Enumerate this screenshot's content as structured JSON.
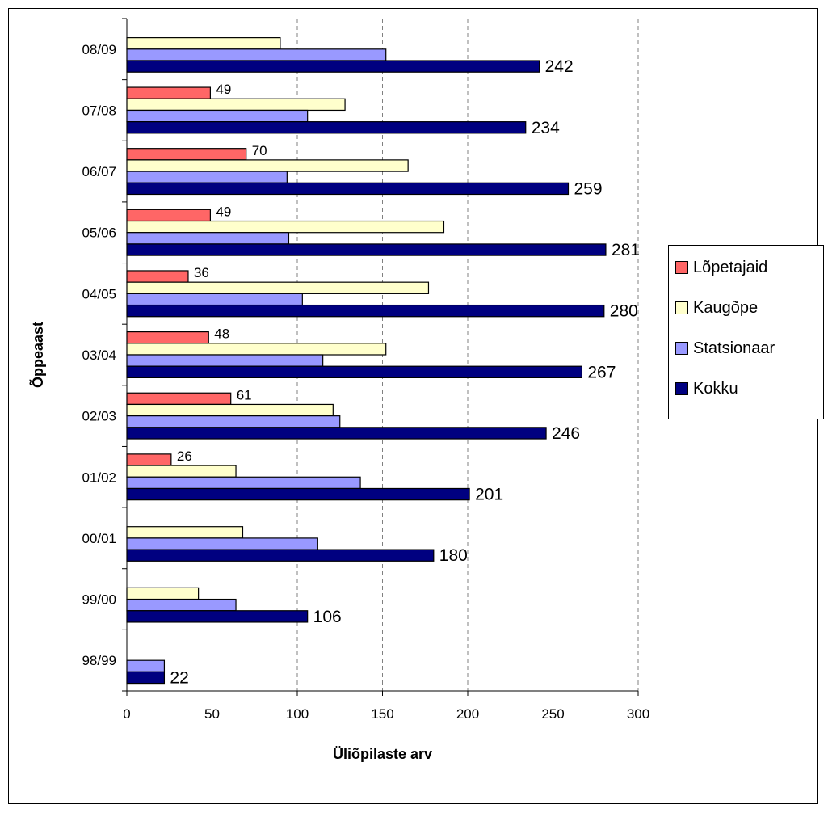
{
  "chart_data": {
    "type": "bar",
    "orientation": "horizontal",
    "xlabel": "Üliõpilaste arv",
    "ylabel": "Õppeaast",
    "xlim": [
      0,
      300
    ],
    "xticks": [
      "0",
      "50",
      "100",
      "150",
      "200",
      "250",
      "300"
    ],
    "grid": "vertical dashed",
    "legend_position": "right",
    "categories": [
      "98/99",
      "99/00",
      "00/01",
      "01/02",
      "02/03",
      "03/04",
      "04/05",
      "05/06",
      "06/07",
      "07/08",
      "08/09"
    ],
    "series": [
      {
        "name": "Lõpetajaid",
        "color": "#FF6666",
        "values": [
          null,
          null,
          null,
          26,
          61,
          48,
          36,
          49,
          70,
          49,
          null
        ],
        "labels": [
          "",
          "",
          "",
          "26",
          "61",
          "48",
          "36",
          "49",
          "70",
          "49",
          ""
        ]
      },
      {
        "name": "Kaugõpe",
        "color": "#FFFFCC",
        "values": [
          null,
          42,
          68,
          64,
          121,
          152,
          177,
          186,
          165,
          128,
          90
        ],
        "labels": [
          "",
          "",
          "",
          "",
          "",
          "",
          "",
          "",
          "",
          "",
          ""
        ]
      },
      {
        "name": "Statsionaar",
        "color": "#9999FF",
        "values": [
          22,
          64,
          112,
          137,
          125,
          115,
          103,
          95,
          94,
          106,
          152
        ],
        "labels": [
          "",
          "",
          "",
          "",
          "",
          "",
          "",
          "",
          "",
          "",
          ""
        ]
      },
      {
        "name": "Kokku",
        "color": "#000080",
        "values": [
          22,
          106,
          180,
          201,
          246,
          267,
          280,
          281,
          259,
          234,
          242
        ],
        "labels": [
          "22",
          "106",
          "180",
          "201",
          "246",
          "267",
          "280",
          "281",
          "259",
          "234",
          "242"
        ]
      }
    ]
  }
}
